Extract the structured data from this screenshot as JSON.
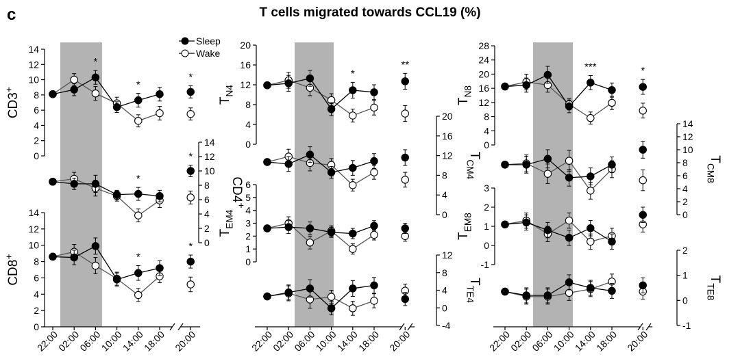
{
  "figure": {
    "panel_letter": "c",
    "title": "T cells migrated towards CCL19 (%)"
  },
  "legend": {
    "sleep_label": "Sleep",
    "wake_label": "Wake"
  },
  "x_ticks": [
    "22:00",
    "02:00",
    "06:00",
    "10:00",
    "14:00",
    "18:00",
    "20:00"
  ],
  "chart_data": {
    "type": "line",
    "title": "T cells migrated towards CCL19 (%)",
    "x": [
      "22:00",
      "02:00",
      "06:00",
      "10:00",
      "14:00",
      "18:00",
      "20:00"
    ],
    "shaded_interval": [
      "22:00",
      "06:00"
    ],
    "axis_break_before": "20:00",
    "grid": false,
    "legend_position": "top-right of left column",
    "series_names": [
      "Sleep",
      "Wake"
    ],
    "panels": [
      {
        "id": "CD3",
        "label": "CD3+",
        "axis_side": "left",
        "ylim": [
          0,
          14
        ],
        "ticks": [
          "0",
          "2",
          "4",
          "6",
          "8",
          "10",
          "12",
          "14"
        ],
        "stars": [
          "",
          "",
          "*",
          "",
          "*",
          "",
          "*"
        ],
        "series": [
          {
            "name": "Sleep",
            "values": [
              8.1,
              8.7,
              10.3,
              6.4,
              7.3,
              8.1,
              8.4
            ],
            "err": [
              0,
              0.8,
              0.9,
              0.7,
              0.9,
              0.9,
              0.8
            ]
          },
          {
            "name": "Wake",
            "values": [
              8.1,
              10.0,
              8.2,
              6.9,
              4.6,
              5.6,
              5.5
            ],
            "err": [
              0,
              0.8,
              0.9,
              0.8,
              0.8,
              0.9,
              0.8
            ]
          }
        ]
      },
      {
        "id": "CD4",
        "label": "CD4+",
        "axis_side": "right",
        "ylim": [
          0,
          14
        ],
        "ticks": [
          "0",
          "2",
          "4",
          "6",
          "8",
          "10",
          "12",
          "14"
        ],
        "stars": [
          "",
          "",
          "",
          "",
          "*",
          "",
          "*"
        ],
        "series": [
          {
            "name": "Sleep",
            "values": [
              8.5,
              8.2,
              8.2,
              6.7,
              6.8,
              6.5,
              10.0
            ],
            "err": [
              0,
              0.8,
              1.2,
              0.6,
              0.9,
              0.8,
              0.8
            ]
          },
          {
            "name": "Wake",
            "values": [
              8.5,
              8.9,
              7.6,
              6.5,
              3.8,
              5.9,
              6.3
            ],
            "err": [
              0,
              0.9,
              1.1,
              0.7,
              0.9,
              1.0,
              0.9
            ]
          }
        ]
      },
      {
        "id": "CD8",
        "label": "CD8+",
        "axis_side": "left",
        "ylim": [
          0,
          14
        ],
        "ticks": [
          "0",
          "2",
          "4",
          "6",
          "8",
          "10",
          "12",
          "14"
        ],
        "stars": [
          "",
          "",
          "",
          "",
          "*",
          "",
          "*"
        ],
        "series": [
          {
            "name": "Sleep",
            "values": [
              8.6,
              8.5,
              9.9,
              5.8,
              6.6,
              7.2,
              8.0
            ],
            "err": [
              0,
              0.9,
              1.0,
              0.8,
              0.9,
              0.9,
              0.8
            ]
          },
          {
            "name": "Wake",
            "values": [
              8.6,
              9.2,
              7.5,
              5.9,
              3.9,
              6.2,
              5.2
            ],
            "err": [
              0,
              0.9,
              1.0,
              0.8,
              0.8,
              0.8,
              0.9
            ]
          }
        ]
      },
      {
        "id": "TN4",
        "label": "TN4",
        "axis_side": "left",
        "ylim": [
          0,
          20
        ],
        "ticks": [
          "0",
          "4",
          "8",
          "12",
          "16",
          "20"
        ],
        "stars": [
          "",
          "",
          "",
          "",
          "*",
          "",
          "**"
        ],
        "series": [
          {
            "name": "Sleep",
            "values": [
              11.9,
              12.3,
              13.3,
              7.1,
              10.9,
              10.5,
              12.7
            ],
            "err": [
              0,
              1.6,
              1.6,
              1.3,
              1.6,
              1.5,
              1.6
            ]
          },
          {
            "name": "Wake",
            "values": [
              11.9,
              12.9,
              11.4,
              8.9,
              5.8,
              7.4,
              6.2
            ],
            "err": [
              0,
              1.6,
              1.6,
              1.3,
              1.3,
              1.5,
              1.6
            ]
          }
        ]
      },
      {
        "id": "TCM4",
        "label": "TCM4",
        "axis_side": "right",
        "ylim": [
          0,
          20
        ],
        "ticks": [
          "0",
          "4",
          "8",
          "12",
          "16",
          "20"
        ],
        "stars": [
          "",
          "",
          "",
          "",
          "",
          "",
          ""
        ],
        "series": [
          {
            "name": "Sleep",
            "values": [
              10.7,
              10.3,
              12.2,
              8.6,
              9.5,
              10.9,
              11.6
            ],
            "err": [
              0,
              1.5,
              1.6,
              1.2,
              1.5,
              1.5,
              1.6
            ]
          },
          {
            "name": "Wake",
            "values": [
              10.7,
              11.8,
              10.5,
              10.1,
              6.0,
              8.6,
              7.1
            ],
            "err": [
              0,
              1.5,
              1.6,
              1.3,
              1.2,
              1.4,
              1.5
            ]
          }
        ]
      },
      {
        "id": "TEM4",
        "label": "TEM4",
        "axis_side": "left",
        "ylim": [
          0,
          6
        ],
        "ticks": [
          "0",
          "1",
          "2",
          "3",
          "4",
          "5",
          "6"
        ],
        "stars": [
          "",
          "",
          "",
          "",
          "",
          "",
          ""
        ],
        "series": [
          {
            "name": "Sleep",
            "values": [
              2.6,
              2.7,
              2.6,
              2.3,
              2.2,
              2.8,
              2.6
            ],
            "err": [
              0,
              0.5,
              0.5,
              0.4,
              0.4,
              0.4,
              0.4
            ]
          },
          {
            "name": "Wake",
            "values": [
              2.6,
              3.0,
              1.5,
              2.4,
              1.0,
              2.1,
              2.0
            ],
            "err": [
              0,
              0.5,
              0.5,
              0.4,
              0.4,
              0.4,
              0.4
            ]
          }
        ]
      },
      {
        "id": "TTE4",
        "label": "TTE4",
        "axis_side": "right",
        "ylim": [
          -4,
          12
        ],
        "ticks": [
          "-4",
          "0",
          "4",
          "8",
          "12"
        ],
        "stars": [
          "",
          "",
          "",
          "",
          "",
          "",
          ""
        ],
        "series": [
          {
            "name": "Sleep",
            "values": [
              2.6,
              3.5,
              4.4,
              -0.1,
              4.4,
              5.1,
              2.0
            ],
            "err": [
              0,
              1.7,
              2.0,
              1.5,
              1.8,
              1.8,
              1.5
            ]
          },
          {
            "name": "Wake",
            "values": [
              2.6,
              3.3,
              1.9,
              2.5,
              -0.1,
              1.6,
              3.9
            ],
            "err": [
              0,
              1.7,
              2.0,
              1.5,
              1.6,
              1.6,
              1.5
            ]
          }
        ]
      },
      {
        "id": "TN8",
        "label": "TN8",
        "axis_side": "left",
        "ylim": [
          0,
          28
        ],
        "ticks": [
          "0",
          "4",
          "8",
          "12",
          "16",
          "20",
          "24",
          "28"
        ],
        "stars": [
          "",
          "",
          "",
          "",
          "***",
          "",
          "*"
        ],
        "series": [
          {
            "name": "Sleep",
            "values": [
              16.5,
              16.9,
              19.8,
              10.9,
              17.6,
              15.5,
              16.4
            ],
            "err": [
              0,
              2.0,
              2.4,
              1.8,
              2.0,
              2.0,
              2.1
            ]
          },
          {
            "name": "Wake",
            "values": [
              16.5,
              17.8,
              16.9,
              11.5,
              7.6,
              11.9,
              9.7
            ],
            "err": [
              0,
              2.2,
              2.0,
              1.6,
              1.7,
              1.9,
              2.1
            ]
          }
        ]
      },
      {
        "id": "TCM8",
        "label": "TCM8",
        "axis_side": "right",
        "ylim": [
          0,
          14
        ],
        "ticks": [
          "0",
          "2",
          "4",
          "6",
          "8",
          "10",
          "12",
          "14"
        ],
        "stars": [
          "",
          "",
          "",
          "",
          "",
          "",
          ""
        ],
        "series": [
          {
            "name": "Sleep",
            "values": [
              7.7,
              7.7,
              8.6,
              5.7,
              5.9,
              7.7,
              10.0
            ],
            "err": [
              0,
              1.3,
              1.4,
              1.3,
              1.3,
              1.2,
              1.3
            ]
          },
          {
            "name": "Wake",
            "values": [
              7.7,
              7.9,
              6.3,
              8.3,
              3.7,
              7.0,
              5.3
            ],
            "err": [
              0,
              1.3,
              1.5,
              1.6,
              1.3,
              1.3,
              1.6
            ]
          }
        ]
      },
      {
        "id": "TEM8",
        "label": "TEM8",
        "axis_side": "left",
        "ylim": [
          -1,
          3
        ],
        "ticks": [
          "-1",
          "0",
          "1",
          "2",
          "3"
        ],
        "stars": [
          "",
          "",
          "",
          "",
          "",
          "",
          ""
        ],
        "series": [
          {
            "name": "Sleep",
            "values": [
              1.1,
              1.2,
              0.8,
              0.4,
              0.9,
              0.2,
              1.6
            ],
            "err": [
              0,
              0.4,
              0.4,
              0.4,
              0.4,
              0.4,
              0.4
            ]
          },
          {
            "name": "Wake",
            "values": [
              1.1,
              1.3,
              0.6,
              1.3,
              0.2,
              0.5,
              1.1
            ],
            "err": [
              0,
              0.4,
              0.4,
              0.4,
              0.4,
              0.4,
              0.4
            ]
          }
        ]
      },
      {
        "id": "TTE8",
        "label": "TTE8",
        "axis_side": "right",
        "ylim": [
          -1,
          2
        ],
        "ticks": [
          "-1",
          "0",
          "1",
          "2"
        ],
        "stars": [
          "",
          "",
          "",
          "",
          "",
          "",
          ""
        ],
        "series": [
          {
            "name": "Sleep",
            "values": [
              0.35,
              0.2,
              0.2,
              0.72,
              0.5,
              0.38,
              0.6
            ],
            "err": [
              0,
              0.3,
              0.3,
              0.3,
              0.3,
              0.3,
              0.3
            ]
          },
          {
            "name": "Wake",
            "values": [
              0.35,
              0.15,
              0.15,
              0.3,
              0.45,
              0.75,
              0.35
            ],
            "err": [
              0,
              0.3,
              0.3,
              0.3,
              0.3,
              0.3,
              0.3
            ]
          }
        ]
      }
    ]
  }
}
